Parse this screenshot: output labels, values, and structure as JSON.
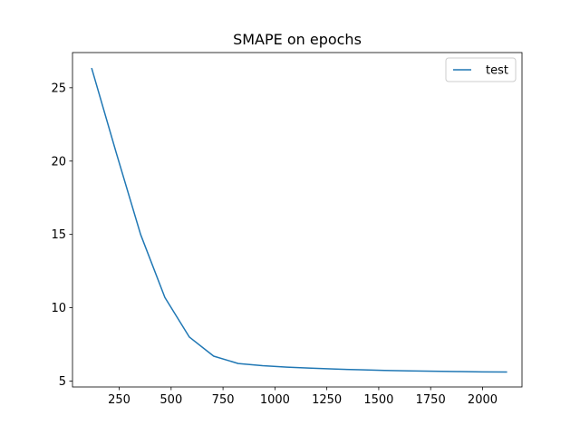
{
  "chart_data": {
    "type": "line",
    "title": "SMAPE on epochs",
    "xlabel": "",
    "ylabel": "",
    "xlim": [
      25,
      2190
    ],
    "ylim": [
      4.6,
      27.4
    ],
    "xticks": [
      250,
      500,
      750,
      1000,
      1250,
      1500,
      1750,
      2000
    ],
    "xtick_labels": [
      "250",
      "500",
      "750",
      "1000",
      "1250",
      "1500",
      "1750",
      "2000"
    ],
    "yticks": [
      5,
      10,
      15,
      20,
      25
    ],
    "ytick_labels": [
      "5",
      "10",
      "15",
      "20",
      "25"
    ],
    "grid": false,
    "legend_position": "upper right",
    "series": [
      {
        "name": "test",
        "color": "#1f77b4",
        "x": [
          118,
          235,
          353,
          470,
          588,
          705,
          823,
          940,
          1058,
          1175,
          1293,
          1410,
          1528,
          1645,
          1763,
          1880,
          1998,
          2115
        ],
        "y": [
          26.3,
          20.6,
          15.0,
          10.7,
          8.0,
          6.7,
          6.2,
          6.05,
          5.95,
          5.88,
          5.82,
          5.77,
          5.73,
          5.7,
          5.67,
          5.65,
          5.63,
          5.62
        ]
      }
    ]
  }
}
